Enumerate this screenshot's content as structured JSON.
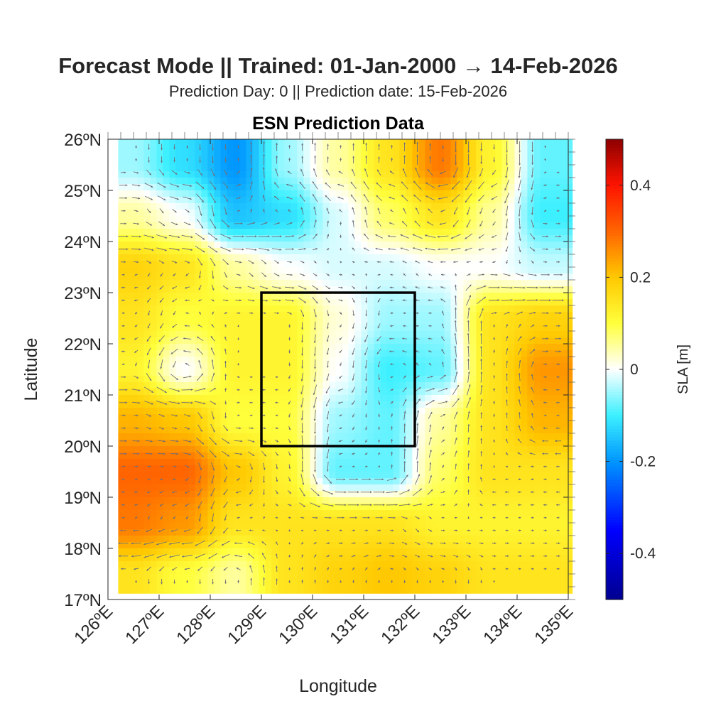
{
  "title": "Forecast Mode || Trained: 01-Jan-2000 → 14-Feb-2026",
  "subtitle": "Prediction Day: 0 || Prediction date: 15-Feb-2026",
  "chart_data": {
    "type": "heatmap",
    "title": "ESN Prediction Data",
    "xlabel": "Longitude",
    "ylabel": "Latitude",
    "xlim": [
      126,
      135
    ],
    "ylim": [
      17,
      26
    ],
    "xticks": [
      "126ºE",
      "127ºE",
      "128ºE",
      "129ºE",
      "130ºE",
      "131ºE",
      "132ºE",
      "133ºE",
      "134ºE",
      "135ºE"
    ],
    "yticks": [
      "17ºN",
      "18ºN",
      "19ºN",
      "20ºN",
      "21ºN",
      "22ºN",
      "23ºN",
      "24ºN",
      "25ºN",
      "26ºN"
    ],
    "grid_lon": [
      126.5,
      127.5,
      128.5,
      129.5,
      130.5,
      131.5,
      132.5,
      133.5,
      134.5
    ],
    "grid_lat": [
      25.5,
      24.5,
      23.5,
      22.5,
      21.5,
      20.5,
      19.5,
      18.5,
      17.5
    ],
    "data_extent": {
      "lon": [
        126.2,
        135
      ],
      "lat": [
        17.2,
        26
      ]
    },
    "sla": [
      [
        -0.05,
        -0.12,
        -0.2,
        -0.05,
        0.05,
        0.15,
        0.28,
        0.12,
        -0.08
      ],
      [
        0.05,
        0.0,
        -0.15,
        -0.12,
        -0.02,
        0.08,
        0.15,
        0.05,
        -0.1
      ],
      [
        0.18,
        0.15,
        0.05,
        0.0,
        -0.02,
        -0.02,
        0.0,
        0.0,
        -0.03
      ],
      [
        0.15,
        0.1,
        0.12,
        0.12,
        0.02,
        -0.05,
        -0.05,
        0.15,
        0.18
      ],
      [
        0.12,
        0.0,
        0.12,
        0.12,
        0.0,
        -0.1,
        -0.08,
        0.15,
        0.25
      ],
      [
        0.22,
        0.2,
        0.1,
        0.1,
        -0.05,
        -0.08,
        0.05,
        0.15,
        0.22
      ],
      [
        0.3,
        0.3,
        0.2,
        0.12,
        -0.08,
        -0.08,
        0.08,
        0.15,
        0.15
      ],
      [
        0.28,
        0.25,
        0.15,
        0.15,
        0.15,
        0.15,
        0.12,
        0.12,
        0.12
      ],
      [
        0.15,
        0.1,
        0.05,
        0.15,
        0.18,
        0.2,
        0.18,
        0.15,
        0.15
      ]
    ],
    "region_box": {
      "lon": [
        129,
        132
      ],
      "lat": [
        20,
        23
      ]
    },
    "colorbar": {
      "label": "SLA [m]",
      "range": [
        -0.5,
        0.5
      ],
      "ticks": [
        "0.4",
        "0.2",
        "0",
        "-0.2",
        "-0.4"
      ],
      "tick_values": [
        0.4,
        0.2,
        0,
        -0.2,
        -0.4
      ]
    },
    "quiver_color": "#6e6e78"
  }
}
